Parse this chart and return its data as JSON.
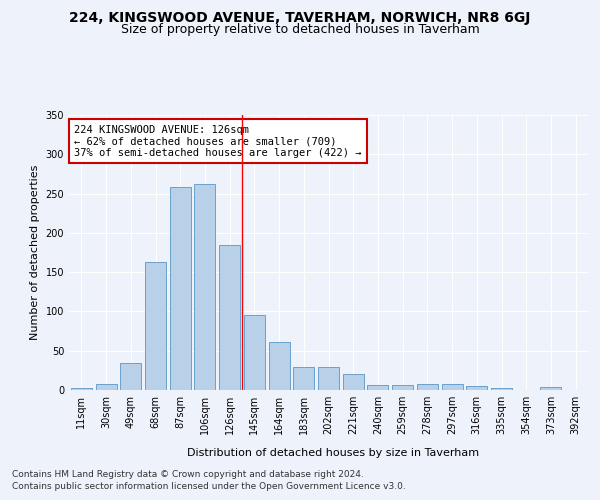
{
  "title": "224, KINGSWOOD AVENUE, TAVERHAM, NORWICH, NR8 6GJ",
  "subtitle": "Size of property relative to detached houses in Taverham",
  "xlabel": "Distribution of detached houses by size in Taverham",
  "ylabel": "Number of detached properties",
  "categories": [
    "11sqm",
    "30sqm",
    "49sqm",
    "68sqm",
    "87sqm",
    "106sqm",
    "126sqm",
    "145sqm",
    "164sqm",
    "183sqm",
    "202sqm",
    "221sqm",
    "240sqm",
    "259sqm",
    "278sqm",
    "297sqm",
    "316sqm",
    "335sqm",
    "354sqm",
    "373sqm",
    "392sqm"
  ],
  "values": [
    2,
    8,
    35,
    163,
    258,
    262,
    185,
    96,
    61,
    29,
    29,
    20,
    6,
    6,
    8,
    8,
    5,
    3,
    0,
    4,
    0
  ],
  "bar_color": "#b8d0e8",
  "bar_edge_color": "#5a96c8",
  "highlight_index": 6,
  "annotation_text": "224 KINGSWOOD AVENUE: 126sqm\n← 62% of detached houses are smaller (709)\n37% of semi-detached houses are larger (422) →",
  "annotation_box_color": "#ffffff",
  "annotation_box_edge": "#cc0000",
  "ylim": [
    0,
    350
  ],
  "yticks": [
    0,
    50,
    100,
    150,
    200,
    250,
    300,
    350
  ],
  "footer_line1": "Contains HM Land Registry data © Crown copyright and database right 2024.",
  "footer_line2": "Contains public sector information licensed under the Open Government Licence v3.0.",
  "bg_color": "#eef2fa",
  "plot_bg_color": "#eef2fa",
  "grid_color": "#ffffff",
  "title_fontsize": 10,
  "subtitle_fontsize": 9,
  "axis_label_fontsize": 8,
  "tick_fontsize": 7,
  "footer_fontsize": 6.5,
  "annotation_fontsize": 7.5
}
